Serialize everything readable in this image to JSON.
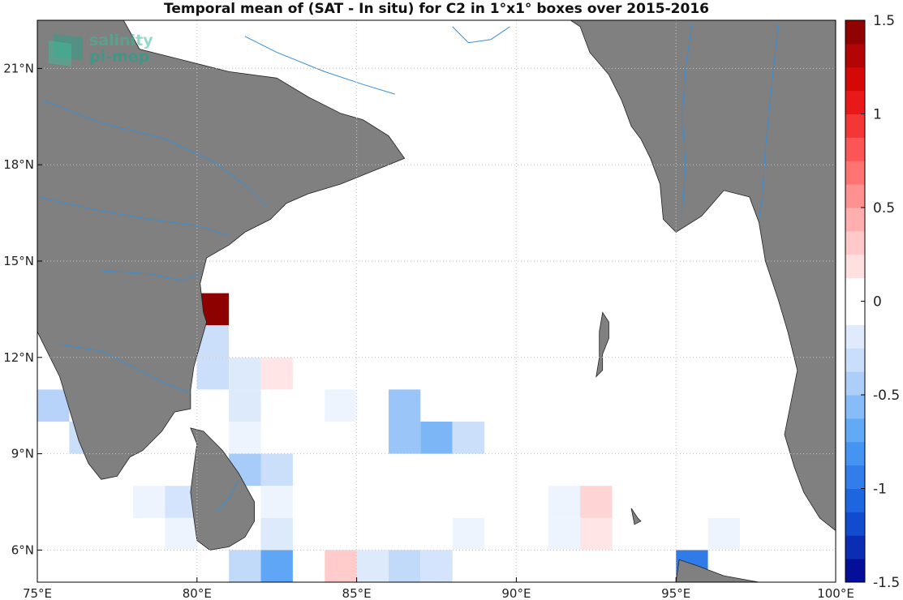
{
  "title": "Temporal mean of (SAT - In situ) for C2 in 1°x1° boxes over 2015-2016",
  "logo": {
    "line1": "salinity",
    "line2": "pi-mep",
    "icon": "pi-mep-logo-icon"
  },
  "colors": {
    "land": "#808080",
    "rivers": "#3a8fd4",
    "grid": "#c8c8c8",
    "frame": "#000000"
  },
  "map": {
    "lon_range": [
      75,
      100
    ],
    "lat_range": [
      5,
      22.5
    ],
    "lon_ticks": [
      {
        "value": 75,
        "label": "75°E"
      },
      {
        "value": 80,
        "label": "80°E"
      },
      {
        "value": 85,
        "label": "85°E"
      },
      {
        "value": 90,
        "label": "90°E"
      },
      {
        "value": 95,
        "label": "95°E"
      },
      {
        "value": 100,
        "label": "100°E"
      }
    ],
    "lat_ticks": [
      {
        "value": 6,
        "label": "6°N"
      },
      {
        "value": 9,
        "label": "9°N"
      },
      {
        "value": 12,
        "label": "12°N"
      },
      {
        "value": 15,
        "label": "15°N"
      },
      {
        "value": 18,
        "label": "18°N"
      },
      {
        "value": 21,
        "label": "21°N"
      }
    ],
    "grid": true,
    "land": [
      {
        "name": "india-peninsula",
        "coords": [
          [
            75,
            22.5
          ],
          [
            77.7,
            22.5
          ],
          [
            78.2,
            21.6
          ],
          [
            79.4,
            21.3
          ],
          [
            81,
            20.9
          ],
          [
            82.5,
            20.7
          ],
          [
            83.5,
            20.1
          ],
          [
            84.5,
            19.6
          ],
          [
            85.2,
            19.4
          ],
          [
            86,
            18.9
          ],
          [
            86.5,
            18.2
          ],
          [
            85.5,
            17.8
          ],
          [
            84.5,
            17.4
          ],
          [
            83.5,
            17.1
          ],
          [
            82.8,
            16.8
          ],
          [
            82.3,
            16.3
          ],
          [
            81.5,
            15.9
          ],
          [
            81,
            15.5
          ],
          [
            80.3,
            15.1
          ],
          [
            80.1,
            14.3
          ],
          [
            80.2,
            13.4
          ],
          [
            80.3,
            13.1
          ],
          [
            80.1,
            12.4
          ],
          [
            79.9,
            11.7
          ],
          [
            79.8,
            11
          ],
          [
            79.8,
            10.4
          ],
          [
            79.3,
            10.3
          ],
          [
            78.9,
            9.7
          ],
          [
            78.3,
            9.1
          ],
          [
            77.9,
            8.9
          ],
          [
            77.5,
            8.3
          ],
          [
            77,
            8.2
          ],
          [
            76.6,
            8.7
          ],
          [
            76.3,
            9.4
          ],
          [
            76,
            10.4
          ],
          [
            75.7,
            11.4
          ],
          [
            75.3,
            12.2
          ],
          [
            75,
            12.8
          ]
        ]
      },
      {
        "name": "bangladesh-myanmar",
        "coords": [
          [
            91.7,
            22.5
          ],
          [
            100,
            22.5
          ],
          [
            100,
            6.6
          ],
          [
            99.5,
            7
          ],
          [
            99,
            7.8
          ],
          [
            98.7,
            8.6
          ],
          [
            98.4,
            9.6
          ],
          [
            98.6,
            10.6
          ],
          [
            98.8,
            11.6
          ],
          [
            98.5,
            12.8
          ],
          [
            98.2,
            13.8
          ],
          [
            97.8,
            15
          ],
          [
            97.6,
            16.2
          ],
          [
            97.3,
            17
          ],
          [
            96.5,
            17.2
          ],
          [
            95.8,
            16.4
          ],
          [
            95,
            15.9
          ],
          [
            94.6,
            16.3
          ],
          [
            94.5,
            17.4
          ],
          [
            94.2,
            18.2
          ],
          [
            93.9,
            18.8
          ],
          [
            93.6,
            19.2
          ],
          [
            93.3,
            20
          ],
          [
            92.9,
            20.8
          ],
          [
            92.3,
            21.5
          ],
          [
            92,
            22.3
          ]
        ]
      },
      {
        "name": "sri-lanka",
        "coords": [
          [
            79.8,
            9.8
          ],
          [
            80.2,
            9.7
          ],
          [
            80.8,
            9.1
          ],
          [
            81.3,
            8.4
          ],
          [
            81.8,
            7.5
          ],
          [
            81.8,
            6.9
          ],
          [
            81.5,
            6.4
          ],
          [
            81,
            6.1
          ],
          [
            80.4,
            6
          ],
          [
            80,
            6.3
          ],
          [
            79.9,
            7
          ],
          [
            79.8,
            7.8
          ],
          [
            79.9,
            8.6
          ],
          [
            80,
            9.3
          ]
        ]
      },
      {
        "name": "sumatra-tip",
        "coords": [
          [
            95.1,
            5.7
          ],
          [
            95.7,
            5.5
          ],
          [
            96.5,
            5.2
          ],
          [
            97.6,
            5
          ],
          [
            95,
            5
          ]
        ]
      },
      {
        "name": "andaman-islands",
        "coords": [
          [
            92.7,
            13.4
          ],
          [
            92.9,
            13.1
          ],
          [
            92.9,
            12.6
          ],
          [
            92.7,
            12.1
          ],
          [
            92.7,
            11.6
          ],
          [
            92.5,
            11.4
          ],
          [
            92.6,
            12
          ],
          [
            92.6,
            12.8
          ]
        ]
      },
      {
        "name": "nicobar-island",
        "coords": [
          [
            93.6,
            7.3
          ],
          [
            93.8,
            7
          ],
          [
            93.9,
            6.9
          ],
          [
            93.7,
            6.8
          ]
        ]
      }
    ],
    "rivers": [
      {
        "name": "godavari-river",
        "coords": [
          [
            75.2,
            20
          ],
          [
            77,
            19.3
          ],
          [
            79,
            18.8
          ],
          [
            80.5,
            18.1
          ],
          [
            81.6,
            17.3
          ],
          [
            82.2,
            16.7
          ]
        ]
      },
      {
        "name": "krishna-river",
        "coords": [
          [
            75,
            17
          ],
          [
            76.8,
            16.6
          ],
          [
            78.5,
            16.3
          ],
          [
            80,
            16.1
          ],
          [
            81,
            15.8
          ]
        ]
      },
      {
        "name": "mahanadi-river",
        "coords": [
          [
            81.5,
            22
          ],
          [
            82.5,
            21.5
          ],
          [
            84,
            20.9
          ],
          [
            85.2,
            20.5
          ],
          [
            86.2,
            20.2
          ]
        ]
      },
      {
        "name": "kaveri-river",
        "coords": [
          [
            75.7,
            12.4
          ],
          [
            77,
            12.2
          ],
          [
            78.2,
            11.6
          ],
          [
            79.2,
            11.1
          ],
          [
            79.8,
            10.9
          ]
        ]
      },
      {
        "name": "penner-river",
        "coords": [
          [
            77,
            14.7
          ],
          [
            78.5,
            14.6
          ],
          [
            79.5,
            14.4
          ],
          [
            80.1,
            14.6
          ]
        ]
      },
      {
        "name": "ganges-delta-rivers",
        "coords": [
          [
            88,
            22.3
          ],
          [
            88.5,
            21.8
          ],
          [
            89.2,
            21.9
          ],
          [
            89.8,
            22.3
          ]
        ]
      },
      {
        "name": "irrawaddy-river",
        "coords": [
          [
            95.5,
            22.4
          ],
          [
            95.3,
            21
          ],
          [
            95.2,
            19.5
          ],
          [
            95.3,
            18
          ],
          [
            95.2,
            16.5
          ]
        ]
      },
      {
        "name": "salween-river",
        "coords": [
          [
            98.2,
            22.4
          ],
          [
            98,
            20.5
          ],
          [
            97.8,
            18.5
          ],
          [
            97.7,
            17
          ],
          [
            97.6,
            16.3
          ]
        ]
      },
      {
        "name": "sri-lanka-rivers",
        "coords": [
          [
            80.6,
            7.2
          ],
          [
            81,
            7.6
          ],
          [
            81.3,
            8.2
          ]
        ]
      }
    ]
  },
  "chart_data": {
    "type": "heatmap",
    "title": "Temporal mean of (SAT - In situ) for C2 in 1°x1° boxes over 2015-2016",
    "cell_size_deg": 1,
    "x_range": [
      75,
      100
    ],
    "y_range": [
      5,
      22.5
    ],
    "colorbar": {
      "range": [
        -1.5,
        1.5
      ],
      "levels": 24,
      "ticks": [
        {
          "value": 1.5,
          "label": "1.5"
        },
        {
          "value": 1,
          "label": "1"
        },
        {
          "value": 0.5,
          "label": "0.5"
        },
        {
          "value": 0,
          "label": "0"
        },
        {
          "value": -0.5,
          "label": "-0.5"
        },
        {
          "value": -1,
          "label": "-1"
        },
        {
          "value": -1.5,
          "label": "-1.5"
        }
      ]
    },
    "cells": [
      {
        "lon": 80.5,
        "lat": 13.5,
        "value": 1.45
      },
      {
        "lon": 80.5,
        "lat": 12.5,
        "value": -0.3
      },
      {
        "lon": 80.5,
        "lat": 11.5,
        "value": -0.3
      },
      {
        "lon": 81.5,
        "lat": 11.5,
        "value": -0.2
      },
      {
        "lon": 82.5,
        "lat": 11.5,
        "value": 0.15
      },
      {
        "lon": 75.5,
        "lat": 10.5,
        "value": -0.4
      },
      {
        "lon": 76.5,
        "lat": 9.5,
        "value": -0.3
      },
      {
        "lon": 81.5,
        "lat": 10.5,
        "value": -0.2
      },
      {
        "lon": 81.5,
        "lat": 9.5,
        "value": -0.1
      },
      {
        "lon": 84.5,
        "lat": 10.5,
        "value": -0.1
      },
      {
        "lon": 86.5,
        "lat": 10.5,
        "value": -0.5
      },
      {
        "lon": 86.5,
        "lat": 9.5,
        "value": -0.5
      },
      {
        "lon": 87.5,
        "lat": 9.5,
        "value": -0.6
      },
      {
        "lon": 88.5,
        "lat": 9.5,
        "value": -0.3
      },
      {
        "lon": 81.5,
        "lat": 8.5,
        "value": -0.45
      },
      {
        "lon": 82.5,
        "lat": 8.5,
        "value": -0.3
      },
      {
        "lon": 78.5,
        "lat": 7.5,
        "value": -0.1
      },
      {
        "lon": 79.5,
        "lat": 7.5,
        "value": -0.25
      },
      {
        "lon": 82.5,
        "lat": 7.5,
        "value": -0.1
      },
      {
        "lon": 79.5,
        "lat": 6.5,
        "value": -0.1
      },
      {
        "lon": 82.5,
        "lat": 6.5,
        "value": -0.2
      },
      {
        "lon": 81.5,
        "lat": 5.5,
        "value": -0.35
      },
      {
        "lon": 82.5,
        "lat": 5.5,
        "value": -0.7
      },
      {
        "lon": 84.5,
        "lat": 5.5,
        "value": 0.3
      },
      {
        "lon": 85.5,
        "lat": 5.5,
        "value": -0.2
      },
      {
        "lon": 86.5,
        "lat": 5.5,
        "value": -0.35
      },
      {
        "lon": 87.5,
        "lat": 5.5,
        "value": -0.25
      },
      {
        "lon": 88.5,
        "lat": 6.5,
        "value": -0.1
      },
      {
        "lon": 91.5,
        "lat": 7.5,
        "value": -0.1
      },
      {
        "lon": 91.5,
        "lat": 6.5,
        "value": -0.1
      },
      {
        "lon": 92.5,
        "lat": 7.5,
        "value": 0.25
      },
      {
        "lon": 92.5,
        "lat": 6.5,
        "value": 0.15
      },
      {
        "lon": 96.5,
        "lat": 6.5,
        "value": -0.1
      },
      {
        "lon": 95.5,
        "lat": 5.5,
        "value": -0.95
      }
    ]
  }
}
